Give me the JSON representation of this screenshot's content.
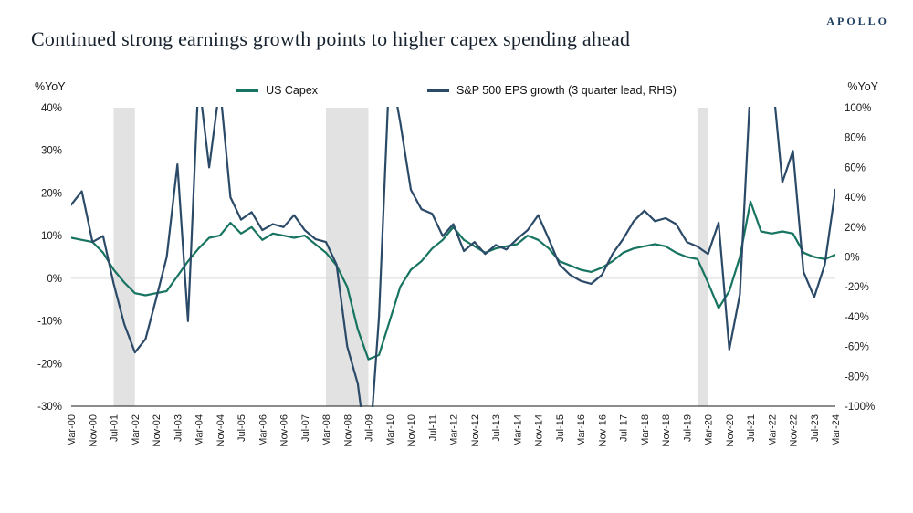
{
  "logo": "APOLLO",
  "title": "Continued strong earnings growth points to higher capex spending ahead",
  "left_axis_label": "%YoY",
  "right_axis_label": "%YoY",
  "chart_data": {
    "type": "line",
    "title": "Continued strong earnings growth points to higher capex spending ahead",
    "legend_position": "top",
    "grid": "zero-line-only",
    "x": [
      "Mar-00",
      "Jul-00",
      "Nov-00",
      "Mar-01",
      "Jul-01",
      "Nov-01",
      "Mar-02",
      "Jul-02",
      "Nov-02",
      "Mar-03",
      "Jul-03",
      "Nov-03",
      "Mar-04",
      "Jul-04",
      "Nov-04",
      "Mar-05",
      "Jul-05",
      "Nov-05",
      "Mar-06",
      "Jul-06",
      "Nov-06",
      "Mar-07",
      "Jul-07",
      "Nov-07",
      "Mar-08",
      "Jul-08",
      "Nov-08",
      "Mar-09",
      "Jul-09",
      "Nov-09",
      "Mar-10",
      "Jul-10",
      "Nov-10",
      "Mar-11",
      "Jul-11",
      "Nov-11",
      "Mar-12",
      "Jul-12",
      "Nov-12",
      "Mar-13",
      "Jul-13",
      "Nov-13",
      "Mar-14",
      "Jul-14",
      "Nov-14",
      "Mar-15",
      "Jul-15",
      "Nov-15",
      "Mar-16",
      "Jul-16",
      "Nov-16",
      "Mar-17",
      "Jul-17",
      "Nov-17",
      "Mar-18",
      "Jul-18",
      "Nov-18",
      "Mar-19",
      "Jul-19",
      "Nov-19",
      "Mar-20",
      "Jul-20",
      "Nov-20",
      "Mar-21",
      "Jul-21",
      "Nov-21",
      "Mar-22",
      "Jul-22",
      "Nov-22",
      "Mar-23",
      "Jul-23",
      "Nov-23",
      "Mar-24"
    ],
    "x_tick_every": 2,
    "series": [
      {
        "name": "US Capex",
        "axis": "left",
        "color": "#177460",
        "values": [
          9.5,
          9.0,
          8.5,
          6.0,
          2.0,
          -1.0,
          -3.5,
          -4.0,
          -3.5,
          -3.0,
          0.5,
          4.0,
          7.0,
          9.5,
          10.0,
          13.0,
          10.5,
          12.0,
          9.0,
          10.5,
          10.0,
          9.5,
          10.0,
          8.0,
          6.0,
          3.0,
          -2.0,
          -12.0,
          -19.0,
          -18.0,
          -10.0,
          -2.0,
          2.0,
          4.0,
          7.0,
          9.0,
          12.0,
          9.0,
          7.5,
          6.0,
          7.0,
          7.5,
          8.0,
          10.0,
          9.0,
          7.0,
          4.0,
          3.0,
          2.0,
          1.5,
          2.5,
          4.0,
          6.0,
          7.0,
          7.5,
          8.0,
          7.5,
          6.0,
          5.0,
          4.5,
          -1.0,
          -7.0,
          -3.0,
          5.0,
          18.0,
          11.0,
          10.5,
          11.0,
          10.5,
          6.0,
          5.0,
          4.5,
          5.5
        ]
      },
      {
        "name": "S&P 500 EPS growth (3 quarter lead, RHS)",
        "axis": "right",
        "color": "#2b4a68",
        "values": [
          35,
          44,
          10,
          14,
          -18,
          -45,
          -64,
          -55,
          -28,
          0,
          62,
          -43,
          120,
          60,
          115,
          40,
          25,
          30,
          18,
          22,
          20,
          28,
          18,
          12,
          10,
          -5,
          -60,
          -85,
          -140,
          -40,
          130,
          90,
          45,
          32,
          29,
          14,
          22,
          4,
          10,
          2,
          8,
          5,
          12,
          18,
          28,
          12,
          -5,
          -12,
          -16,
          -18,
          -12,
          2,
          12,
          24,
          31,
          24,
          26,
          22,
          10,
          7,
          2,
          23,
          -62,
          -25,
          115,
          130,
          125,
          50,
          71,
          -10,
          -27,
          -5,
          45
        ]
      }
    ],
    "left_axis": {
      "label": "%YoY",
      "min": -30,
      "max": 40,
      "step": 10,
      "suffix": "%"
    },
    "right_axis": {
      "label": "%YoY",
      "min": -100,
      "max": 100,
      "step": 20,
      "suffix": "%"
    },
    "gridline_at_left": 0,
    "recession_bands": [
      [
        "Jul-01",
        "Mar-02"
      ],
      [
        "Mar-08",
        "Jul-09"
      ],
      [
        "Nov-19",
        "Mar-20"
      ]
    ],
    "band_color": "#e2e2e2",
    "zero_line_color": "#d9d9d9",
    "axis_line_color": "#1a1a1a"
  }
}
